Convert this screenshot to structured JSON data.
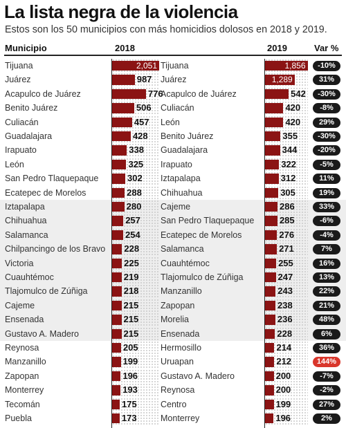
{
  "title": "La lista negra de la violencia",
  "subtitle": "Estos son los 50 municipios con más homicidios dolosos en 2018 y 2019.",
  "headers": {
    "municipio": "Municipio",
    "y2018": "2018",
    "y2019": "2019",
    "var": "Var %"
  },
  "colors": {
    "bar": "#8b1414",
    "pill": "#1a1a1a",
    "pill_highlight": "#d9362b",
    "row_shade": "#eeeeee"
  },
  "chart_data": {
    "type": "bar",
    "orientation": "horizontal",
    "title": "La lista negra de la violencia",
    "subtitle": "Estos son los 50 municipios con más homicidios dolosos en 2018 y 2019.",
    "panels": [
      {
        "name": "2018",
        "categories": [
          "Tijuana",
          "Juárez",
          "Acapulco de Juárez",
          "Benito Juárez",
          "Culiacán",
          "Guadalajara",
          "Irapuato",
          "León",
          "San Pedro Tlaquepaque",
          "Ecatepec de Morelos",
          "Iztapalapa",
          "Chihuahua",
          "Salamanca",
          "Chilpancingo de los Bravo",
          "Victoria",
          "Cuauhtémoc",
          "Tlajomulco de Zúñiga",
          "Cajeme",
          "Ensenada",
          "Gustavo A. Madero",
          "Reynosa",
          "Manzanillo",
          "Zapopan",
          "Monterrey",
          "Tecomán",
          "Puebla"
        ],
        "values": [
          2051,
          987,
          776,
          506,
          457,
          428,
          338,
          325,
          302,
          288,
          280,
          257,
          254,
          228,
          225,
          219,
          218,
          215,
          215,
          215,
          205,
          199,
          196,
          193,
          175,
          173
        ],
        "labels": [
          "2,051",
          "987",
          "776",
          "506",
          "457",
          "428",
          "338",
          "325",
          "302",
          "288",
          "280",
          "257",
          "254",
          "228",
          "225",
          "219",
          "218",
          "215",
          "215",
          "215",
          "205",
          "199",
          "196",
          "193",
          "175",
          "173"
        ]
      },
      {
        "name": "2019",
        "categories": [
          "Tijuana",
          "Juárez",
          "Acapulco de Juárez",
          "Culiacán",
          "León",
          "Benito Juárez",
          "Guadalajara",
          "Irapuato",
          "Iztapalapa",
          "Chihuahua",
          "Cajeme",
          "San Pedro Tlaquepaque",
          "Ecatepec de Morelos",
          "Salamanca",
          "Cuauhtémoc",
          "Tlajomulco de Zúñiga",
          "Manzanillo",
          "Zapopan",
          "Morelia",
          "Ensenada",
          "Hermosillo",
          "Uruapan",
          "Gustavo A. Madero",
          "Reynosa",
          "Centro",
          "Monterrey"
        ],
        "values": [
          1856,
          1289,
          542,
          420,
          420,
          355,
          344,
          322,
          312,
          305,
          286,
          285,
          276,
          271,
          255,
          247,
          243,
          238,
          236,
          228,
          214,
          212,
          200,
          200,
          199,
          196
        ],
        "labels": [
          "1,856",
          "1,289",
          "542",
          "420",
          "420",
          "355",
          "344",
          "322",
          "312",
          "305",
          "286",
          "285",
          "276",
          "271",
          "255",
          "247",
          "243",
          "238",
          "236",
          "228",
          "214",
          "212",
          "200",
          "200",
          "199",
          "196"
        ],
        "var_pct": [
          "-10%",
          "31%",
          "-30%",
          "-8%",
          "29%",
          "-30%",
          "-20%",
          "-5%",
          "11%",
          "19%",
          "33%",
          "-6%",
          "-4%",
          "7%",
          "16%",
          "13%",
          "22%",
          "21%",
          "48%",
          "6%",
          "36%",
          "144%",
          "-7%",
          "-2%",
          "27%",
          "2%"
        ],
        "highlight": [
          false,
          false,
          false,
          false,
          false,
          false,
          false,
          false,
          false,
          false,
          false,
          false,
          false,
          false,
          false,
          false,
          false,
          false,
          false,
          false,
          false,
          true,
          false,
          false,
          false,
          false
        ]
      }
    ]
  }
}
